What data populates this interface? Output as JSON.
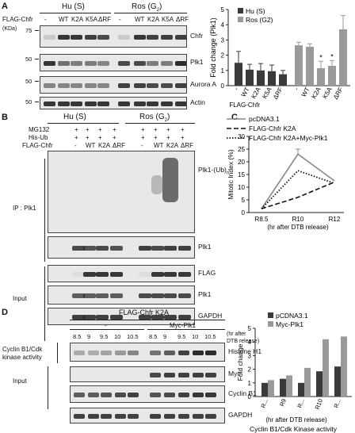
{
  "panelA": {
    "letter": "A",
    "group_hu": "Hu (S)",
    "group_ros": "Ros (G",
    "group_ros_sub": "2",
    "group_ros_end": ")",
    "row_label": "FLAG-Chfr",
    "lanes": [
      "-",
      "WT",
      "K2A",
      "K5A",
      "ΔRF",
      "-",
      "WT",
      "K2A",
      "K5A",
      "ΔRF"
    ],
    "kda_label": "(KDa)",
    "mw": [
      "75",
      "50",
      "50",
      "50"
    ],
    "blots": [
      "Chfr",
      "Plk1",
      "Aurora A",
      "Actin"
    ]
  },
  "chartA": {
    "chart_data": {
      "type": "bar",
      "ylabel": "Fold change (Plk1)",
      "ylim": [
        0,
        5
      ],
      "yticks": [
        "0",
        "1",
        "2",
        "3",
        "4",
        "5"
      ],
      "series": [
        {
          "name": "Hu (S)",
          "color": "#3a3a3a",
          "categories": [
            "-",
            "WT",
            "K2A",
            "K5A",
            "ΔRF"
          ],
          "values": [
            1.5,
            1.05,
            1.0,
            0.95,
            0.75
          ],
          "errors": [
            0.75,
            0.35,
            0.45,
            0.4,
            0.25
          ]
        },
        {
          "name": "Ros (G2)",
          "color": "#9a9a9a",
          "categories": [
            "-",
            "WT",
            "K2A",
            "K5A",
            "ΔRF"
          ],
          "values": [
            2.65,
            2.55,
            1.15,
            1.3,
            3.7
          ],
          "errors": [
            0.2,
            0.2,
            0.45,
            0.35,
            0.9
          ]
        }
      ],
      "asterisks": [
        "*",
        "*"
      ],
      "xlabel_prefix": "FLAG-Chfr",
      "legend_position": "top-left"
    }
  },
  "panelB": {
    "letter": "B",
    "group_hu": "Hu (S)",
    "group_ros": "Ros (G",
    "group_ros_sub": "2",
    "group_ros_end": ")",
    "rows": [
      {
        "label": "MG132",
        "values": [
          "+",
          "+",
          "+",
          "+",
          "+",
          "+",
          "+",
          "+"
        ]
      },
      {
        "label": "His-Ub",
        "values": [
          "+",
          "+",
          "+",
          "+",
          "+",
          "+",
          "+",
          "+"
        ]
      },
      {
        "label": "FLAG-Chfr",
        "values": [
          "-",
          "WT",
          "K2A",
          "ΔRF",
          "-",
          "WT",
          "K2A",
          "ΔRF"
        ]
      }
    ],
    "ip_label": "IP : Plk1",
    "input_label": "Input",
    "blots": [
      "Plk1-(Ub)",
      "Plk1",
      "FLAG",
      "Plk1",
      "GAPDH"
    ],
    "ub_sub": "n"
  },
  "panelC": {
    "letter": "C",
    "chart_data": {
      "type": "line",
      "ylabel": "Mitotic Index (%)",
      "xlabel": "(hr after DTB release)",
      "categories": [
        "R8.5",
        "R10",
        "R12"
      ],
      "ylim": [
        0,
        30
      ],
      "yticks": [
        "0",
        "5",
        "10",
        "15",
        "20",
        "25",
        "30"
      ],
      "series": [
        {
          "name": "pcDNA3.1",
          "values": [
            1.5,
            23,
            12.5
          ],
          "errors": [
            0,
            2,
            0
          ],
          "style": "solid"
        },
        {
          "name": "FLAG-Chfr K2A",
          "values": [
            1.5,
            6,
            12
          ],
          "errors": [
            0,
            0,
            0
          ],
          "style": "dashed"
        },
        {
          "name": "FLAG-Chfr K2A+Myc-Plk1",
          "values": [
            1.5,
            16.5,
            11.5
          ],
          "errors": [
            0,
            0,
            0
          ],
          "style": "dotted"
        }
      ],
      "legend_position": "top"
    }
  },
  "panelD": {
    "letter": "D",
    "top_label": "FLAG-Chfr K2A",
    "group_minus": "-",
    "group_myc": "Myc-Plk1",
    "times": [
      "8.5",
      "9",
      "9.5",
      "10",
      "10.5",
      "8.5",
      "9",
      "9.5",
      "10",
      "10.5"
    ],
    "time_note": [
      "(hr after",
      "DTB release)"
    ],
    "kinase_label": [
      "Cyclin B1/Cdk",
      "kinase activity"
    ],
    "input_label": "Input",
    "blots": [
      "Histone H1",
      "Myc",
      "Cyclin B1",
      "GAPDH"
    ]
  },
  "chartD": {
    "chart_data": {
      "type": "bar",
      "ylabel": "Fold change",
      "ylim": [
        0,
        5
      ],
      "yticks": [
        "0",
        "1",
        "2",
        "3",
        "4",
        "5"
      ],
      "categories": [
        "R...",
        "R9",
        "R...",
        "R10",
        "R..."
      ],
      "series": [
        {
          "name": "pCDNA3.1",
          "color": "#3a3a3a",
          "values": [
            1.0,
            1.3,
            1.0,
            1.85,
            2.2
          ]
        },
        {
          "name": "Myc-Plk1",
          "color": "#9a9a9a",
          "values": [
            1.2,
            1.55,
            2.1,
            4.2,
            4.4
          ]
        }
      ],
      "xlabel": "(hr after DTB release)",
      "title": "Cyclin B1/Cdk Kinase activity",
      "legend_position": "top-left"
    }
  }
}
